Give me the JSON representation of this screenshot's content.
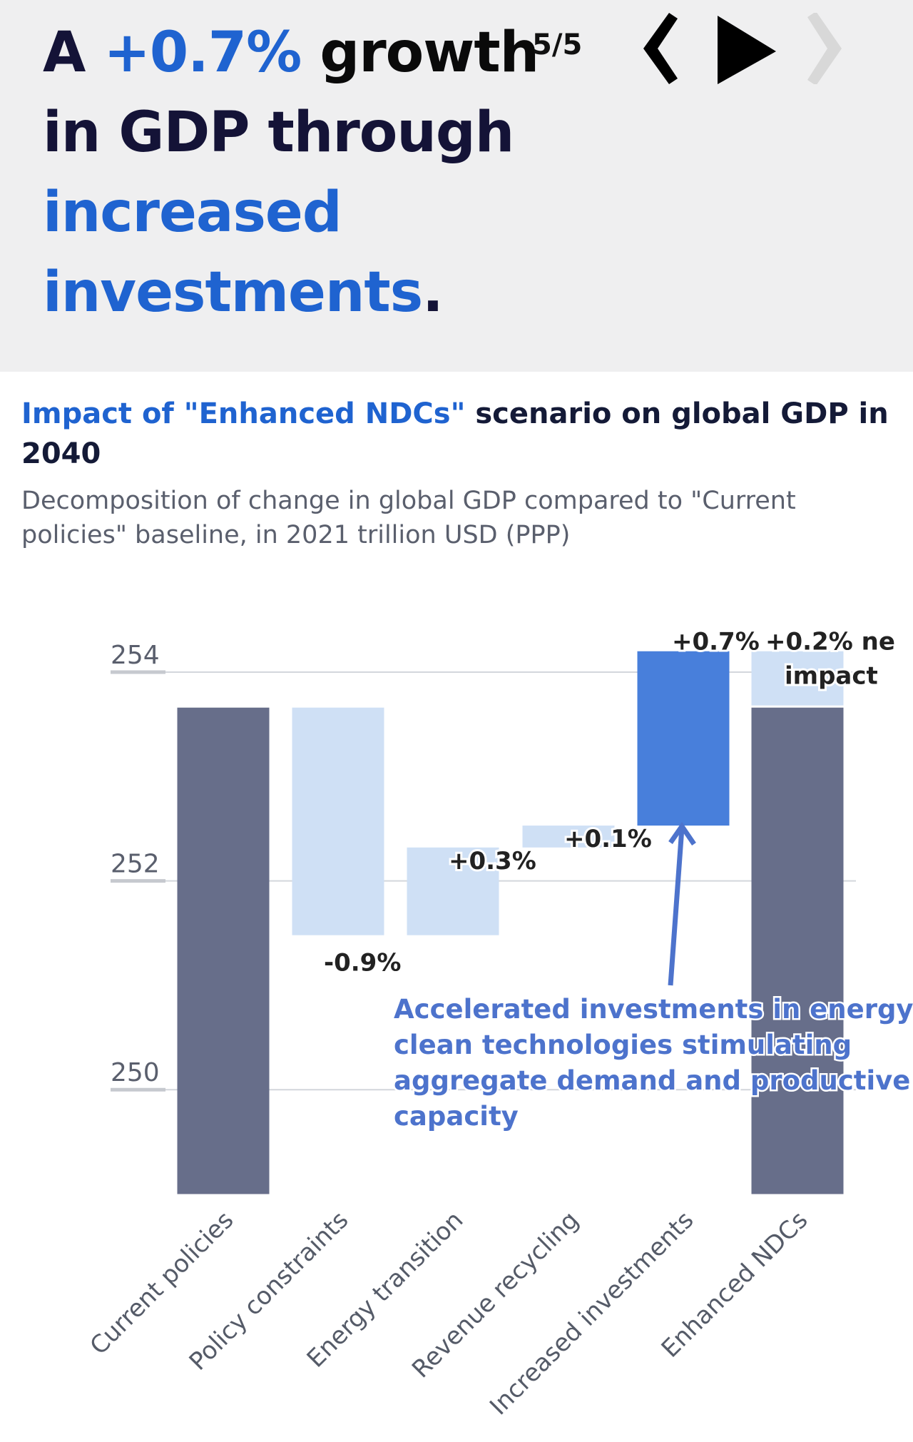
{
  "header": {
    "headline_parts": [
      {
        "text": "A ",
        "style": "dark"
      },
      {
        "text": "+0.7%",
        "style": "highlight"
      },
      {
        "text": " growth",
        "style": "black"
      },
      {
        "text": " in GDP through ",
        "style": "dark"
      },
      {
        "text": "increased investments",
        "style": "highlight"
      },
      {
        "text": ".",
        "style": "dark"
      }
    ],
    "page_counter": "5/5",
    "nav": {
      "prev_icon": "chevron-left-icon",
      "play_icon": "play-icon",
      "next_icon": "chevron-right-icon",
      "next_disabled": true
    }
  },
  "colors": {
    "highlight": "#1f63d0",
    "dark_text": "#141337",
    "total_bar": "#676e8a",
    "change_bar": "#cfe0f5",
    "emphasis_bar": "#487fdb",
    "annotation": "#4d73cc",
    "header_bg": "#efeff0"
  },
  "chart_title": {
    "highlight": "Impact of \"Enhanced NDCs\"",
    "rest": " scenario on global GDP in 2040"
  },
  "chart_subtitle": "Decomposition of change in global GDP compared to \"Current policies\" baseline, in 2021 trillion USD (PPP)",
  "chart_data": {
    "type": "bar",
    "subtype": "waterfall",
    "title": "Impact of \"Enhanced NDCs\" scenario on global GDP in 2040",
    "subtitle": "Decomposition of change in global GDP compared to \"Current policies\" baseline, in 2021 trillion USD (PPP)",
    "xlabel": "",
    "ylabel": "",
    "ylim": [
      249,
      254.4
    ],
    "yticks": [
      250,
      252,
      254
    ],
    "grid": true,
    "categories": [
      "Current policies",
      "Policy constraints",
      "Energy transition",
      "Revenue recycling",
      "Increased investments",
      "Enhanced NDCs"
    ],
    "bars": [
      {
        "category": "Current policies",
        "kind": "total",
        "start": 249,
        "end": 253.66,
        "label": ""
      },
      {
        "category": "Policy constraints",
        "kind": "change",
        "start": 253.66,
        "end": 251.48,
        "label": "-0.9%"
      },
      {
        "category": "Energy transition",
        "kind": "change",
        "start": 251.48,
        "end": 252.32,
        "label": "+0.3%"
      },
      {
        "category": "Revenue recycling",
        "kind": "change",
        "start": 252.32,
        "end": 252.53,
        "label": "+0.1%"
      },
      {
        "category": "Increased investments",
        "kind": "emphasis",
        "start": 252.53,
        "end": 254.2,
        "label": "+0.7%"
      },
      {
        "category": "Enhanced NDCs",
        "kind": "total",
        "start": 249,
        "end": 253.66,
        "label": ""
      },
      {
        "category": "Enhanced NDCs",
        "kind": "change",
        "start": 253.66,
        "end": 254.2,
        "label": "+0.2% ne impact"
      }
    ],
    "annotation": {
      "lines": [
        "Accelerated investments in energy",
        "clean technologies stimulating",
        "aggregate demand and productive",
        "capacity"
      ],
      "target": "Increased investments"
    }
  }
}
